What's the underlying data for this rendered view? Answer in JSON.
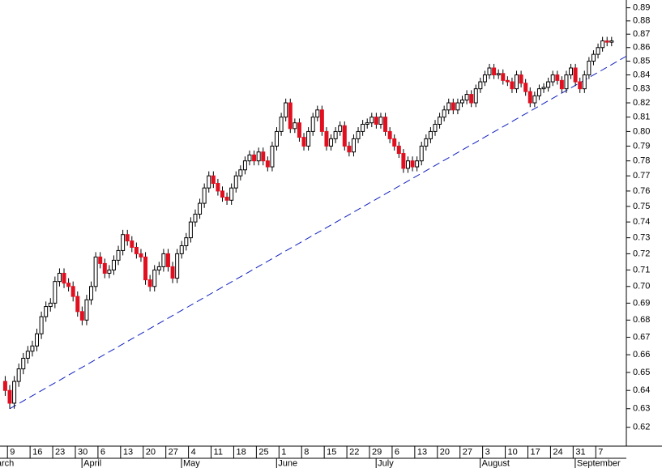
{
  "chart_data": {
    "type": "candlestick",
    "log_scale": true,
    "up_color": "#ffffff",
    "down_color": "#e01020",
    "outline_color": "#000000",
    "x": [
      "Mar 6",
      "Mar 9",
      "Mar 10",
      "Mar 11",
      "Mar 12",
      "Mar 13",
      "Mar 16",
      "Mar 17",
      "Mar 18",
      "Mar 19",
      "Mar 20",
      "Mar 23",
      "Mar 24",
      "Mar 25",
      "Mar 26",
      "Mar 27",
      "Mar 30",
      "Mar 31",
      "Apr 1",
      "Apr 2",
      "Apr 3",
      "Apr 6",
      "Apr 7",
      "Apr 8",
      "Apr 9",
      "Apr 10",
      "Apr 13",
      "Apr 14",
      "Apr 15",
      "Apr 16",
      "Apr 17",
      "Apr 20",
      "Apr 21",
      "Apr 22",
      "Apr 23",
      "Apr 24",
      "Apr 27",
      "Apr 28",
      "Apr 29",
      "Apr 30",
      "May 1",
      "May 4",
      "May 5",
      "May 6",
      "May 7",
      "May 8",
      "May 11",
      "May 12",
      "May 13",
      "May 14",
      "May 15",
      "May 18",
      "May 19",
      "May 20",
      "May 21",
      "May 22",
      "May 25",
      "May 26",
      "May 27",
      "May 28",
      "May 29",
      "Jun 1",
      "Jun 2",
      "Jun 3",
      "Jun 4",
      "Jun 5",
      "Jun 8",
      "Jun 9",
      "Jun 10",
      "Jun 11",
      "Jun 12",
      "Jun 15",
      "Jun 16",
      "Jun 17",
      "Jun 18",
      "Jun 19",
      "Jun 22",
      "Jun 23",
      "Jun 24",
      "Jun 25",
      "Jun 26",
      "Jun 29",
      "Jun 30",
      "Jul 1",
      "Jul 2",
      "Jul 3",
      "Jul 6",
      "Jul 7",
      "Jul 8",
      "Jul 9",
      "Jul 10",
      "Jul 13",
      "Jul 14",
      "Jul 15",
      "Jul 16",
      "Jul 17",
      "Jul 20",
      "Jul 21",
      "Jul 22",
      "Jul 23",
      "Jul 24",
      "Jul 27",
      "Jul 28",
      "Jul 29",
      "Jul 30",
      "Jul 31",
      "Aug 3",
      "Aug 4",
      "Aug 5",
      "Aug 6",
      "Aug 7",
      "Aug 10",
      "Aug 11",
      "Aug 12",
      "Aug 13",
      "Aug 14",
      "Aug 17",
      "Aug 18",
      "Aug 19",
      "Aug 20",
      "Aug 21",
      "Aug 24",
      "Aug 25",
      "Aug 26",
      "Aug 27",
      "Aug 28",
      "Aug 31",
      "Sep 1",
      "Sep 2",
      "Sep 3",
      "Sep 4",
      "Sep 7",
      "Sep 8",
      "Sep 9",
      "Sep 10"
    ],
    "open": [
      0.645,
      0.64,
      0.633,
      0.645,
      0.652,
      0.658,
      0.662,
      0.665,
      0.672,
      0.682,
      0.688,
      0.69,
      0.703,
      0.708,
      0.702,
      0.7,
      0.694,
      0.685,
      0.68,
      0.692,
      0.7,
      0.718,
      0.714,
      0.708,
      0.71,
      0.716,
      0.722,
      0.732,
      0.728,
      0.724,
      0.72,
      0.718,
      0.704,
      0.7,
      0.71,
      0.712,
      0.72,
      0.712,
      0.705,
      0.72,
      0.725,
      0.73,
      0.74,
      0.745,
      0.752,
      0.762,
      0.77,
      0.765,
      0.76,
      0.756,
      0.754,
      0.762,
      0.77,
      0.774,
      0.78,
      0.784,
      0.78,
      0.786,
      0.78,
      0.776,
      0.79,
      0.8,
      0.81,
      0.82,
      0.802,
      0.806,
      0.796,
      0.79,
      0.8,
      0.81,
      0.815,
      0.8,
      0.79,
      0.795,
      0.8,
      0.804,
      0.79,
      0.786,
      0.795,
      0.8,
      0.805,
      0.806,
      0.81,
      0.805,
      0.81,
      0.8,
      0.795,
      0.79,
      0.785,
      0.775,
      0.78,
      0.776,
      0.78,
      0.79,
      0.795,
      0.8,
      0.805,
      0.81,
      0.815,
      0.82,
      0.815,
      0.82,
      0.822,
      0.826,
      0.82,
      0.83,
      0.835,
      0.84,
      0.845,
      0.84,
      0.841,
      0.836,
      0.835,
      0.83,
      0.84,
      0.834,
      0.828,
      0.82,
      0.825,
      0.83,
      0.831,
      0.835,
      0.84,
      0.836,
      0.83,
      0.84,
      0.845,
      0.835,
      0.83,
      0.84,
      0.85,
      0.855,
      0.86,
      0.865,
      0.864
    ],
    "high": [
      0.648,
      0.643,
      0.648,
      0.655,
      0.661,
      0.665,
      0.668,
      0.675,
      0.685,
      0.691,
      0.693,
      0.706,
      0.711,
      0.711,
      0.705,
      0.703,
      0.697,
      0.688,
      0.695,
      0.703,
      0.721,
      0.721,
      0.717,
      0.713,
      0.719,
      0.725,
      0.735,
      0.735,
      0.731,
      0.727,
      0.723,
      0.721,
      0.707,
      0.713,
      0.715,
      0.723,
      0.723,
      0.715,
      0.723,
      0.728,
      0.733,
      0.743,
      0.748,
      0.755,
      0.765,
      0.773,
      0.773,
      0.768,
      0.763,
      0.759,
      0.765,
      0.773,
      0.777,
      0.783,
      0.787,
      0.787,
      0.789,
      0.789,
      0.783,
      0.793,
      0.803,
      0.813,
      0.823,
      0.823,
      0.809,
      0.809,
      0.799,
      0.803,
      0.813,
      0.818,
      0.818,
      0.803,
      0.798,
      0.803,
      0.807,
      0.807,
      0.793,
      0.798,
      0.803,
      0.808,
      0.809,
      0.813,
      0.813,
      0.813,
      0.813,
      0.803,
      0.798,
      0.793,
      0.788,
      0.783,
      0.783,
      0.783,
      0.793,
      0.798,
      0.803,
      0.808,
      0.813,
      0.818,
      0.823,
      0.823,
      0.823,
      0.825,
      0.829,
      0.829,
      0.833,
      0.838,
      0.843,
      0.848,
      0.848,
      0.844,
      0.844,
      0.839,
      0.838,
      0.843,
      0.843,
      0.837,
      0.831,
      0.828,
      0.833,
      0.834,
      0.838,
      0.843,
      0.843,
      0.839,
      0.843,
      0.848,
      0.848,
      0.838,
      0.843,
      0.853,
      0.858,
      0.863,
      0.868,
      0.868,
      0.868
    ],
    "low": [
      0.637,
      0.63,
      0.63,
      0.642,
      0.649,
      0.655,
      0.659,
      0.662,
      0.669,
      0.679,
      0.685,
      0.687,
      0.7,
      0.699,
      0.697,
      0.691,
      0.682,
      0.677,
      0.677,
      0.689,
      0.697,
      0.711,
      0.705,
      0.705,
      0.707,
      0.713,
      0.719,
      0.725,
      0.721,
      0.717,
      0.715,
      0.701,
      0.697,
      0.697,
      0.707,
      0.709,
      0.709,
      0.702,
      0.702,
      0.717,
      0.722,
      0.727,
      0.737,
      0.742,
      0.749,
      0.759,
      0.762,
      0.757,
      0.753,
      0.751,
      0.751,
      0.759,
      0.767,
      0.771,
      0.777,
      0.777,
      0.777,
      0.777,
      0.773,
      0.773,
      0.787,
      0.797,
      0.807,
      0.799,
      0.799,
      0.793,
      0.787,
      0.787,
      0.797,
      0.807,
      0.797,
      0.787,
      0.787,
      0.792,
      0.797,
      0.787,
      0.783,
      0.783,
      0.792,
      0.797,
      0.802,
      0.803,
      0.802,
      0.802,
      0.797,
      0.792,
      0.787,
      0.782,
      0.772,
      0.772,
      0.773,
      0.773,
      0.777,
      0.787,
      0.792,
      0.797,
      0.802,
      0.807,
      0.812,
      0.812,
      0.812,
      0.817,
      0.819,
      0.817,
      0.817,
      0.827,
      0.832,
      0.837,
      0.837,
      0.837,
      0.833,
      0.832,
      0.827,
      0.827,
      0.831,
      0.825,
      0.817,
      0.817,
      0.822,
      0.827,
      0.828,
      0.832,
      0.833,
      0.827,
      0.827,
      0.837,
      0.832,
      0.827,
      0.827,
      0.837,
      0.847,
      0.852,
      0.857,
      0.861,
      0.861
    ],
    "close": [
      0.64,
      0.633,
      0.645,
      0.652,
      0.658,
      0.662,
      0.665,
      0.672,
      0.682,
      0.688,
      0.69,
      0.703,
      0.708,
      0.702,
      0.7,
      0.694,
      0.685,
      0.68,
      0.692,
      0.7,
      0.718,
      0.714,
      0.708,
      0.71,
      0.716,
      0.722,
      0.732,
      0.728,
      0.724,
      0.72,
      0.718,
      0.704,
      0.7,
      0.71,
      0.712,
      0.72,
      0.712,
      0.705,
      0.72,
      0.725,
      0.73,
      0.74,
      0.745,
      0.752,
      0.762,
      0.77,
      0.765,
      0.76,
      0.756,
      0.754,
      0.762,
      0.77,
      0.774,
      0.78,
      0.784,
      0.78,
      0.786,
      0.78,
      0.776,
      0.79,
      0.8,
      0.81,
      0.82,
      0.802,
      0.806,
      0.796,
      0.79,
      0.8,
      0.81,
      0.815,
      0.8,
      0.79,
      0.795,
      0.8,
      0.804,
      0.79,
      0.786,
      0.795,
      0.8,
      0.805,
      0.806,
      0.81,
      0.805,
      0.81,
      0.8,
      0.795,
      0.79,
      0.785,
      0.775,
      0.78,
      0.776,
      0.78,
      0.79,
      0.795,
      0.8,
      0.805,
      0.81,
      0.815,
      0.82,
      0.815,
      0.82,
      0.822,
      0.826,
      0.82,
      0.83,
      0.835,
      0.84,
      0.845,
      0.84,
      0.841,
      0.836,
      0.835,
      0.83,
      0.84,
      0.834,
      0.828,
      0.82,
      0.825,
      0.83,
      0.831,
      0.835,
      0.84,
      0.836,
      0.83,
      0.84,
      0.845,
      0.835,
      0.83,
      0.84,
      0.85,
      0.855,
      0.86,
      0.865,
      0.864,
      0.865
    ],
    "ylim": [
      0.61,
      0.896
    ],
    "yticks": [
      0.62,
      0.63,
      0.64,
      0.65,
      0.66,
      0.67,
      0.68,
      0.69,
      {
        "value": 0.7,
        "label": "0.70"
      },
      0.71,
      0.72,
      0.73,
      0.74,
      0.75,
      0.76,
      0.77,
      0.78,
      0.79,
      {
        "value": 0.8,
        "label": "0.80"
      },
      0.81,
      0.82,
      0.83,
      0.84,
      0.85,
      0.86,
      0.87,
      0.88,
      0.89
    ],
    "xticks": [
      {
        "value": "Mar 9",
        "label": "9"
      },
      {
        "value": "Mar 16",
        "label": "16"
      },
      {
        "value": "Mar 23",
        "label": "23"
      },
      {
        "value": "Mar 30",
        "label": "30"
      },
      {
        "value": "Apr 6",
        "label": "6"
      },
      {
        "value": "Apr 13",
        "label": "13"
      },
      {
        "value": "Apr 20",
        "label": "20"
      },
      {
        "value": "Apr 27",
        "label": "27"
      },
      {
        "value": "May 4",
        "label": "4"
      },
      {
        "value": "May 11",
        "label": "11"
      },
      {
        "value": "May 18",
        "label": "18"
      },
      {
        "value": "May 25",
        "label": "25"
      },
      {
        "value": "Jun 1",
        "label": "1"
      },
      {
        "value": "Jun 8",
        "label": "8"
      },
      {
        "value": "Jun 15",
        "label": "15"
      },
      {
        "value": "Jun 22",
        "label": "22"
      },
      {
        "value": "Jun 29",
        "label": "29"
      },
      {
        "value": "Jul 6",
        "label": "6"
      },
      {
        "value": "Jul 13",
        "label": "13"
      },
      {
        "value": "Jul 20",
        "label": "20"
      },
      {
        "value": "Jul 27",
        "label": "27"
      },
      {
        "value": "Aug 3",
        "label": "3"
      },
      {
        "value": "Aug 10",
        "label": "10"
      },
      {
        "value": "Aug 17",
        "label": "17"
      },
      {
        "value": "Aug 24",
        "label": "24"
      },
      {
        "value": "Aug 31",
        "label": "31"
      },
      {
        "value": "Sep 7",
        "label": "7"
      }
    ],
    "month_ticks": [
      {
        "value": "Mar 2",
        "label": "March"
      },
      {
        "value": "Apr 1",
        "label": "April"
      },
      {
        "value": "May 1",
        "label": "May"
      },
      {
        "value": "Jun 1",
        "label": "June"
      },
      {
        "value": "Jul 1",
        "label": "July"
      },
      {
        "value": "Aug 3",
        "label": "August"
      },
      {
        "value": "Sep 1",
        "label": "September"
      }
    ],
    "trendline": {
      "color": "#1020c0",
      "points": [
        {
          "x": "Mar 9",
          "y": 0.63
        },
        {
          "x": "Jul 13",
          "y": 0.77
        }
      ]
    }
  }
}
